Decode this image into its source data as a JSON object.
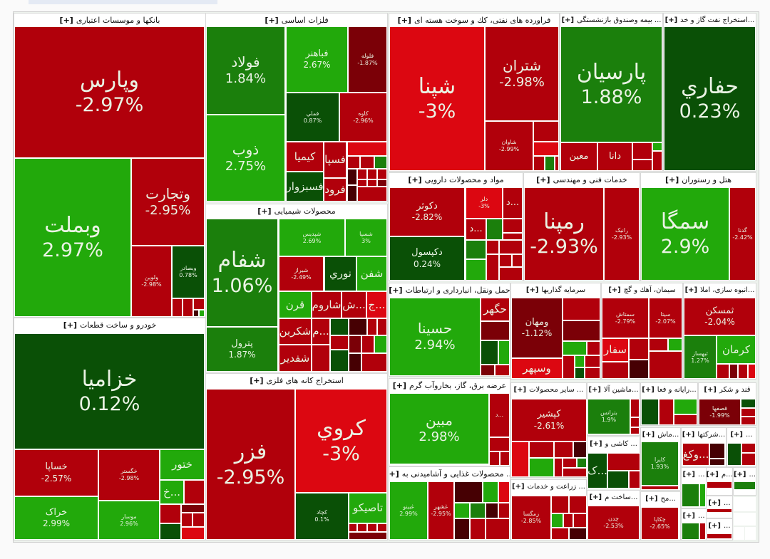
{
  "palette": {
    "red": "#b1000b",
    "bright_red": "#dc0711",
    "dark_red": "#7b0007",
    "darkest_red": "#460003",
    "green": "#22a90b",
    "mid_green": "#1b7f0c",
    "dark_green": "#0a5006"
  },
  "expand_label": "[+]",
  "sectors": [
    {
      "title": "بانکها و موسسات اعتباری",
      "tiles": [
        {
          "symbol": "وپارس",
          "change": "-2.97%",
          "tone": "red"
        },
        {
          "symbol": "وبملت",
          "change": "2.97%",
          "tone": "green"
        },
        {
          "symbol": "وتجارت",
          "change": "-2.95%",
          "tone": "red"
        },
        {
          "symbol": "ولوین",
          "change": "-2.98%",
          "tone": "red"
        },
        {
          "symbol": "وبصادر",
          "change": "0.78%",
          "tone": "dark_green"
        }
      ]
    },
    {
      "title": "فلزات اساسی",
      "tiles": [
        {
          "symbol": "فولاد",
          "change": "1.84%",
          "tone": "mid_green"
        },
        {
          "symbol": "ذوب",
          "change": "2.75%",
          "tone": "green"
        },
        {
          "symbol": "فباهنر",
          "change": "2.67%",
          "tone": "green"
        },
        {
          "symbol": "فلوله",
          "change": "-1.87%",
          "tone": "dark_red"
        },
        {
          "symbol": "فملي",
          "change": "0.87%",
          "tone": "dark_green"
        },
        {
          "symbol": "کاوه",
          "change": "-2.96%",
          "tone": "red"
        },
        {
          "symbol": "کیمیا",
          "tone": "red"
        },
        {
          "symbol": "فسپا",
          "tone": "red"
        },
        {
          "symbol": "فسبزوار",
          "tone": "dark_green"
        },
        {
          "symbol": "فرود",
          "tone": "red"
        }
      ]
    },
    {
      "title": "فراورده های نفتی، کك و سوخت هسته ای",
      "tiles": [
        {
          "symbol": "شپنا",
          "change": "-3%",
          "tone": "bright_red"
        },
        {
          "symbol": "شتران",
          "change": "-2.98%",
          "tone": "red"
        },
        {
          "symbol": "شاوان",
          "change": "-2.99%",
          "tone": "red"
        }
      ]
    },
    {
      "title": "... بیمه وصندوق بازنشستگی",
      "tiles": [
        {
          "symbol": "پارسیان",
          "change": "1.88%",
          "tone": "mid_green"
        },
        {
          "symbol": "معین",
          "tone": "red"
        },
        {
          "symbol": "دانا",
          "tone": "red"
        }
      ]
    },
    {
      "title": "...استخراج نفت گاز و خد",
      "tiles": [
        {
          "symbol": "حفاري",
          "change": "0.23%",
          "tone": "dark_green"
        }
      ]
    },
    {
      "title": "محصولات شیمیایی",
      "tiles": [
        {
          "symbol": "شفام",
          "change": "1.06%",
          "tone": "mid_green"
        },
        {
          "symbol": "پترول",
          "change": "1.87%",
          "tone": "mid_green"
        },
        {
          "symbol": "شپدیس",
          "change": "2.69%",
          "tone": "green"
        },
        {
          "symbol": "شسپا",
          "change": "3%",
          "tone": "green"
        },
        {
          "symbol": "شیراز",
          "change": "-2.49%",
          "tone": "red"
        },
        {
          "symbol": "نوري",
          "tone": "dark_green"
        },
        {
          "symbol": "شفن",
          "tone": "green"
        },
        {
          "symbol": "قرن",
          "tone": "green"
        },
        {
          "symbol": "شاروم",
          "tone": "red"
        },
        {
          "symbol": "ش...",
          "tone": "red"
        },
        {
          "symbol": "ج...",
          "tone": "bright_red"
        },
        {
          "symbol": "شکربن",
          "tone": "red"
        },
        {
          "symbol": "م...",
          "tone": "red"
        },
        {
          "symbol": "شفدیر",
          "tone": "red"
        }
      ]
    },
    {
      "title": "استخراج کانه های فلزی",
      "tiles": [
        {
          "symbol": "فزر",
          "change": "-2.95%",
          "tone": "red"
        },
        {
          "symbol": "کروي",
          "change": "-3%",
          "tone": "bright_red"
        },
        {
          "symbol": "کچاد",
          "change": "0.1%",
          "tone": "dark_green"
        },
        {
          "symbol": "تاصیکو",
          "tone": "green"
        }
      ]
    },
    {
      "title": "خودرو و ساخت قطعات",
      "tiles": [
        {
          "symbol": "خزامیا",
          "change": "0.12%",
          "tone": "dark_green"
        },
        {
          "symbol": "خساپا",
          "change": "-2.57%",
          "tone": "red"
        },
        {
          "symbol": "خگستر",
          "change": "-2.98%",
          "tone": "red"
        },
        {
          "symbol": "ختور",
          "tone": "green"
        },
        {
          "symbol": "خراک",
          "change": "2.99%",
          "tone": "green"
        },
        {
          "symbol": "موسار",
          "change": "2.96%",
          "tone": "green"
        },
        {
          "symbol": "خ...",
          "tone": "green"
        }
      ]
    },
    {
      "title": "مواد و محصولات دارویی",
      "tiles": [
        {
          "symbol": "دکوثر",
          "change": "-2.82%",
          "tone": "red"
        },
        {
          "symbol": "دکپسول",
          "change": "0.24%",
          "tone": "dark_green"
        },
        {
          "symbol": "دلر",
          "change": "-3%",
          "tone": "bright_red"
        },
        {
          "symbol": "د...",
          "tone": "red"
        },
        {
          "symbol": "د...",
          "tone": "red"
        }
      ]
    },
    {
      "title": "خدمات فنی و مهندسی",
      "tiles": [
        {
          "symbol": "رمپنا",
          "change": "-2.93%",
          "tone": "red"
        },
        {
          "symbol": "رانیک",
          "change": "-2.93%",
          "tone": "red"
        }
      ]
    },
    {
      "title": "هتل و رستوران",
      "tiles": [
        {
          "symbol": "سمگا",
          "change": "2.9%",
          "tone": "green"
        },
        {
          "symbol": "گدنا",
          "change": "-2.42%",
          "tone": "red"
        }
      ]
    },
    {
      "title": "حمل ونقل، انبارداری و ارتباطات",
      "tiles": [
        {
          "symbol": "حسینا",
          "change": "2.94%",
          "tone": "green"
        },
        {
          "symbol": "حگهر",
          "tone": "red"
        }
      ]
    },
    {
      "title": "سرمایه گذاریها",
      "tiles": [
        {
          "symbol": "ومهان",
          "change": "-1.12%",
          "tone": "dark_red"
        },
        {
          "symbol": "وسپهر",
          "tone": "bright_red"
        }
      ]
    },
    {
      "title": "سیمان، آهك و گچ",
      "tiles": [
        {
          "symbol": "سمتاش",
          "change": "-2.79%",
          "tone": "red"
        },
        {
          "symbol": "سیتا",
          "change": "-2.07%",
          "tone": "red"
        },
        {
          "symbol": "سفار",
          "tone": "bright_red"
        }
      ]
    },
    {
      "title": "...انبوه سازی، املا",
      "tiles": [
        {
          "symbol": "ثمسکن",
          "change": "-2.04%",
          "tone": "red"
        },
        {
          "symbol": "ثبهساز",
          "change": "1.27%",
          "tone": "mid_green"
        },
        {
          "symbol": "کرمان",
          "tone": "green"
        }
      ]
    },
    {
      "title": "عرضه برق، گاز، بخاروآب گرم",
      "tiles": [
        {
          "symbol": "مبین",
          "change": "2.98%",
          "tone": "green"
        },
        {
          "symbol": "د...",
          "tone": "red"
        }
      ]
    },
    {
      "title": "... محصولات غذایی و آشامیدنی به",
      "tiles": [
        {
          "symbol": "غبینو",
          "change": "2.99%",
          "tone": "green"
        },
        {
          "symbol": "غشهر",
          "change": "-2.95%",
          "tone": "red"
        }
      ]
    },
    {
      "title": "... سایر محصولات",
      "tiles": [
        {
          "symbol": "کپشیر",
          "change": "-2.61%",
          "tone": "red"
        }
      ]
    },
    {
      "title": "... زراعت و خدمات",
      "tiles": [
        {
          "symbol": "زمگسا",
          "change": "-2.85%",
          "tone": "red"
        }
      ]
    },
    {
      "title": "...ماشین آلا",
      "tiles": [
        {
          "symbol": "بترانس",
          "change": "1.9%",
          "tone": "mid_green"
        }
      ]
    },
    {
      "title": "... کاشی و",
      "tiles": [
        {
          "symbol": "ک...",
          "tone": "dark_green"
        }
      ]
    },
    {
      "title": "...ساخت م",
      "tiles": [
        {
          "symbol": "چدن",
          "change": "-2.53%",
          "tone": "red"
        }
      ]
    },
    {
      "title": "...رایانه و فعا",
      "tiles": []
    },
    {
      "title": "قند و شکر",
      "tiles": [
        {
          "symbol": "قصفها",
          "change": "-1.99%",
          "tone": "dark_red"
        }
      ]
    },
    {
      "title": "...ماش",
      "tiles": [
        {
          "symbol": "کایرا",
          "change": "1.93%",
          "tone": "mid_green"
        }
      ]
    },
    {
      "title": "...شرکتها",
      "tiles": [
        {
          "symbol": "وکغ...",
          "tone": "red"
        }
      ]
    },
    {
      "title": "...",
      "tiles": []
    },
    {
      "title": "...",
      "tiles": []
    },
    {
      "title": "...م",
      "tiles": []
    },
    {
      "title": "...",
      "tiles": []
    },
    {
      "title": "...مح",
      "tiles": [
        {
          "symbol": "چکاپا",
          "change": "-2.65%",
          "tone": "red"
        }
      ]
    },
    {
      "title": "...",
      "tiles": []
    },
    {
      "title": "...",
      "tiles": []
    },
    {
      "title": "...",
      "tiles": []
    }
  ]
}
